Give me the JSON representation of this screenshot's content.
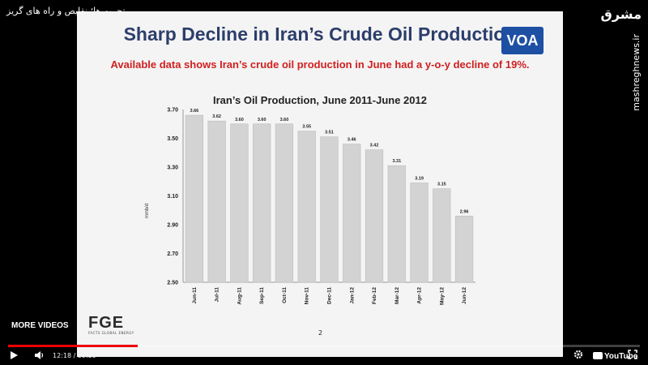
{
  "video": {
    "title": "تحریم ها؛ نقایص و راه های گریز",
    "time": "12:18 / 59:59",
    "progress_fraction": 0.205,
    "more_videos": "MORE VIDEOS",
    "youtube": "YouTube"
  },
  "watermark": {
    "site": "mashreghnews.ir",
    "logo": "مشرق"
  },
  "slide": {
    "title": "Sharp Decline in Iran’s Crude Oil Production",
    "subtitle": "Available data shows Iran’s crude oil production in June had a y-o-y decline of 19%.",
    "voa": "VOA",
    "fge": "FGE",
    "fge_sub": "FACTS GLOBAL ENERGY",
    "page": "2"
  },
  "chart_data": {
    "type": "bar",
    "title": "Iran’s Oil Production, June 2011-June 2012",
    "ylabel": "mmb/d",
    "xlabel": "",
    "ylim": [
      2.5,
      3.7
    ],
    "yticks": [
      "2.50",
      "2.70",
      "2.90",
      "3.10",
      "3.30",
      "3.50",
      "3.70"
    ],
    "categories": [
      "Jun-11",
      "Jul-11",
      "Aug-11",
      "Sep-11",
      "Oct-11",
      "Nov-11",
      "Dec-11",
      "Jan-12",
      "Feb-12",
      "Mar-12",
      "Apr-12",
      "May-12",
      "Jun-12"
    ],
    "values": [
      3.66,
      3.62,
      3.6,
      3.6,
      3.6,
      3.55,
      3.51,
      3.46,
      3.42,
      3.31,
      3.19,
      3.15,
      2.96
    ],
    "labels": [
      "3.66",
      "3.62",
      "3.60",
      "3.60",
      "3.60",
      "3.55",
      "3.51",
      "3.46",
      "3.42",
      "3.31",
      "3.19",
      "3.15",
      "2.96"
    ],
    "bar_color": "#d3d3d3",
    "grid": false
  }
}
